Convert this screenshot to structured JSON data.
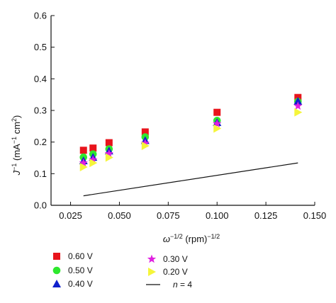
{
  "chart_data": {
    "type": "scatter",
    "xlabel_main": "ω",
    "xlabel_exp": "−1/2",
    "xlabel_unit": " (rpm)",
    "xlabel_unit_exp": "−1/2",
    "ylabel_main": "J",
    "ylabel_exp": "−1",
    "ylabel_unit_a": " (mA",
    "ylabel_unit_a_exp": "−1",
    "ylabel_unit_b": " cm",
    "ylabel_unit_b_exp": "2",
    "ylabel_close": ")",
    "xlim": [
      0.015,
      0.15
    ],
    "ylim": [
      0.0,
      0.6
    ],
    "xticks": [
      {
        "v": 0.025,
        "label": "0.025"
      },
      {
        "v": 0.05,
        "label": "0.050"
      },
      {
        "v": 0.075,
        "label": "0.075"
      },
      {
        "v": 0.1,
        "label": "0.100"
      },
      {
        "v": 0.125,
        "label": "0.125"
      },
      {
        "v": 0.15,
        "label": "0.150"
      }
    ],
    "yticks": [
      {
        "v": 0.0,
        "label": "0.0"
      },
      {
        "v": 0.1,
        "label": "0.1"
      },
      {
        "v": 0.2,
        "label": "0.2"
      },
      {
        "v": 0.3,
        "label": "0.3"
      },
      {
        "v": 0.4,
        "label": "0.4"
      },
      {
        "v": 0.5,
        "label": "0.5"
      },
      {
        "v": 0.6,
        "label": "0.6"
      }
    ],
    "x": [
      0.0316,
      0.0365,
      0.0447,
      0.0632,
      0.1,
      0.1414
    ],
    "series": [
      {
        "name": "0.60 V",
        "marker": "square",
        "color": "#e8141c",
        "values": [
          0.174,
          0.181,
          0.198,
          0.232,
          0.294,
          0.341
        ]
      },
      {
        "name": "0.50 V",
        "marker": "circle",
        "color": "#2ee82e",
        "values": [
          0.152,
          0.162,
          0.178,
          0.216,
          0.268,
          0.328
        ]
      },
      {
        "name": "0.40 V",
        "marker": "triangle",
        "color": "#1020cc",
        "values": [
          0.141,
          0.152,
          0.172,
          0.205,
          0.262,
          0.329
        ]
      },
      {
        "name": "0.30 V",
        "marker": "star",
        "color": "#e020e0",
        "values": [
          0.134,
          0.144,
          0.163,
          0.196,
          0.258,
          0.314
        ]
      },
      {
        "name": "0.20 V",
        "marker": "triangle-right",
        "color": "#f5f53a",
        "values": [
          0.121,
          0.134,
          0.151,
          0.188,
          0.243,
          0.294
        ]
      },
      {
        "name": "n = 4",
        "name_italic": "n",
        "name_rest": " = 4",
        "marker": "line",
        "color": "#111111",
        "x": [
          0.0316,
          0.1414
        ],
        "values": [
          0.03,
          0.134
        ]
      }
    ]
  }
}
